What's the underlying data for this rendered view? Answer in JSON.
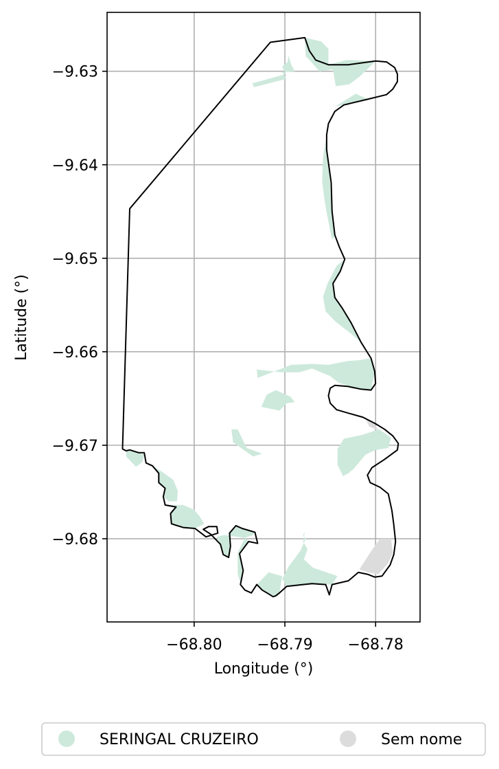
{
  "chart_data": {
    "type": "map",
    "xlabel": "Longitude (°)",
    "ylabel": "Latitude (°)",
    "xlim": [
      -68.8096,
      -68.7751
    ],
    "ylim": [
      -9.6889,
      -9.6237
    ],
    "x_ticks": [
      {
        "value": -68.8,
        "label": "−68.80"
      },
      {
        "value": -68.79,
        "label": "−68.79"
      },
      {
        "value": -68.78,
        "label": "−68.78"
      }
    ],
    "y_ticks": [
      {
        "value": -9.63,
        "label": "−9.63"
      },
      {
        "value": -9.64,
        "label": "−9.64"
      },
      {
        "value": -9.65,
        "label": "−9.65"
      },
      {
        "value": -9.66,
        "label": "−9.66"
      },
      {
        "value": -9.67,
        "label": "−9.67"
      },
      {
        "value": -9.68,
        "label": "−9.68"
      }
    ],
    "grid": true,
    "legend_position": "bottom",
    "legend": [
      {
        "label": "SERINGAL CRUZEIRO",
        "color": "#cde9dc"
      },
      {
        "label": "Sem nome",
        "color": "#dcdcdc"
      }
    ],
    "boundary_color": "#000000",
    "boundary": [
      [
        -68.7916,
        -9.6269
      ],
      [
        -68.7878,
        -9.6264
      ],
      [
        -68.7873,
        -9.6278
      ],
      [
        -68.7866,
        -9.6288
      ],
      [
        -68.7852,
        -9.6293
      ],
      [
        -68.783,
        -9.6293
      ],
      [
        -68.78,
        -9.6289
      ],
      [
        -68.7788,
        -9.629
      ],
      [
        -68.7779,
        -9.6296
      ],
      [
        -68.7776,
        -9.6303
      ],
      [
        -68.7776,
        -9.6311
      ],
      [
        -68.7781,
        -9.6319
      ],
      [
        -68.7788,
        -9.6325
      ],
      [
        -68.7809,
        -9.633
      ],
      [
        -68.7835,
        -9.6336
      ],
      [
        -68.7845,
        -9.6343
      ],
      [
        -68.7852,
        -9.6356
      ],
      [
        -68.7854,
        -9.6368
      ],
      [
        -68.7854,
        -9.6384
      ],
      [
        -68.7849,
        -9.6419
      ],
      [
        -68.7848,
        -9.645
      ],
      [
        -68.7845,
        -9.6475
      ],
      [
        -68.784,
        -9.6488
      ],
      [
        -68.7834,
        -9.6501
      ],
      [
        -68.7839,
        -9.6514
      ],
      [
        -68.7847,
        -9.6527
      ],
      [
        -68.7845,
        -9.6542
      ],
      [
        -68.7837,
        -9.6553
      ],
      [
        -68.7827,
        -9.6569
      ],
      [
        -68.7816,
        -9.659
      ],
      [
        -68.7805,
        -9.6607
      ],
      [
        -68.7801,
        -9.6621
      ],
      [
        -68.78,
        -9.6634
      ],
      [
        -68.7805,
        -9.6641
      ],
      [
        -68.7816,
        -9.664
      ],
      [
        -68.7831,
        -9.6637
      ],
      [
        -68.7845,
        -9.6636
      ],
      [
        -68.785,
        -9.6639
      ],
      [
        -68.7852,
        -9.6647
      ],
      [
        -68.785,
        -9.6655
      ],
      [
        -68.7843,
        -9.6662
      ],
      [
        -68.7829,
        -9.6666
      ],
      [
        -68.7814,
        -9.667
      ],
      [
        -68.78,
        -9.6677
      ],
      [
        -68.779,
        -9.6683
      ],
      [
        -68.7781,
        -9.669
      ],
      [
        -68.7775,
        -9.6698
      ],
      [
        -68.7776,
        -9.6705
      ],
      [
        -68.779,
        -9.6715
      ],
      [
        -68.7804,
        -9.6724
      ],
      [
        -68.7809,
        -9.6732
      ],
      [
        -68.7806,
        -9.674
      ],
      [
        -68.7795,
        -9.6745
      ],
      [
        -68.7786,
        -9.6752
      ],
      [
        -68.7782,
        -9.677
      ],
      [
        -68.778,
        -9.6785
      ],
      [
        -68.7778,
        -9.6803
      ],
      [
        -68.778,
        -9.6817
      ],
      [
        -68.7784,
        -9.6828
      ],
      [
        -68.7793,
        -9.684
      ],
      [
        -68.7801,
        -9.6841
      ],
      [
        -68.7809,
        -9.6838
      ],
      [
        -68.7819,
        -9.6836
      ],
      [
        -68.783,
        -9.6845
      ],
      [
        -68.7848,
        -9.6849
      ],
      [
        -68.7851,
        -9.686
      ],
      [
        -68.7855,
        -9.6849
      ],
      [
        -68.787,
        -9.6848
      ],
      [
        -68.788,
        -9.6849
      ],
      [
        -68.7898,
        -9.6851
      ],
      [
        -68.7906,
        -9.6858
      ],
      [
        -68.791,
        -9.6861
      ],
      [
        -68.7913,
        -9.6862
      ],
      [
        -68.7918,
        -9.6859
      ],
      [
        -68.7925,
        -9.6855
      ],
      [
        -68.7931,
        -9.6849
      ],
      [
        -68.7937,
        -9.6858
      ],
      [
        -68.7944,
        -9.6855
      ],
      [
        -68.7949,
        -9.6849
      ],
      [
        -68.7946,
        -9.6834
      ],
      [
        -68.795,
        -9.6816
      ],
      [
        -68.794,
        -9.6803
      ],
      [
        -68.793,
        -9.6805
      ],
      [
        -68.7933,
        -9.6793
      ],
      [
        -68.7947,
        -9.6789
      ],
      [
        -68.7954,
        -9.6786
      ],
      [
        -68.7961,
        -9.6794
      ],
      [
        -68.796,
        -9.6808
      ],
      [
        -68.7962,
        -9.682
      ],
      [
        -68.7968,
        -9.6817
      ],
      [
        -68.7971,
        -9.6806
      ],
      [
        -68.7982,
        -9.6795
      ],
      [
        -68.799,
        -9.679
      ],
      [
        -68.7984,
        -9.6787
      ],
      [
        -68.7975,
        -9.6787
      ],
      [
        -68.7974,
        -9.6794
      ],
      [
        -68.7987,
        -9.6798
      ],
      [
        -68.7999,
        -9.6789
      ],
      [
        -68.8012,
        -9.6788
      ],
      [
        -68.8025,
        -9.6784
      ],
      [
        -68.8026,
        -9.6773
      ],
      [
        -68.802,
        -9.6766
      ],
      [
        -68.8032,
        -9.6764
      ],
      [
        -68.8034,
        -9.6755
      ],
      [
        -68.8032,
        -9.6746
      ],
      [
        -68.8039,
        -9.674
      ],
      [
        -68.8039,
        -9.673
      ],
      [
        -68.8046,
        -9.6722
      ],
      [
        -68.8053,
        -9.6719
      ],
      [
        -68.8055,
        -9.6708
      ],
      [
        -68.8061,
        -9.6708
      ],
      [
        -68.8071,
        -9.6705
      ],
      [
        -68.8075,
        -9.6706
      ],
      [
        -68.8079,
        -9.6704
      ],
      [
        -68.8071,
        -9.6447
      ],
      [
        -68.7916,
        -9.6269
      ]
    ],
    "seringal_cruzeiro_color": "#cde9dc",
    "seringal_cruzeiro_regions": [
      [
        [
          -68.7878,
          -9.6264
        ],
        [
          -68.786,
          -9.6268
        ],
        [
          -68.7852,
          -9.6276
        ],
        [
          -68.7852,
          -9.6293
        ],
        [
          -68.7832,
          -9.6288
        ],
        [
          -68.78,
          -9.6289
        ],
        [
          -68.7806,
          -9.6295
        ],
        [
          -68.7818,
          -9.6306
        ],
        [
          -68.7829,
          -9.6314
        ],
        [
          -68.7844,
          -9.6316
        ],
        [
          -68.7847,
          -9.6298
        ],
        [
          -68.7862,
          -9.63
        ],
        [
          -68.787,
          -9.6291
        ],
        [
          -68.7877,
          -9.6284
        ]
      ],
      [
        [
          -68.7896,
          -9.6283
        ],
        [
          -68.7893,
          -9.6293
        ],
        [
          -68.7889,
          -9.63
        ],
        [
          -68.7903,
          -9.6301
        ],
        [
          -68.7898,
          -9.6308
        ],
        [
          -68.7934,
          -9.6317
        ],
        [
          -68.7936,
          -9.6313
        ],
        [
          -68.7899,
          -9.6303
        ],
        [
          -68.7903,
          -9.6295
        ],
        [
          -68.7897,
          -9.629
        ]
      ],
      [
        [
          -68.7848,
          -9.6339
        ],
        [
          -68.7833,
          -9.6335
        ],
        [
          -68.7808,
          -9.633
        ],
        [
          -68.7822,
          -9.6324
        ],
        [
          -68.7845,
          -9.6338
        ]
      ],
      [
        [
          -68.7854,
          -9.6368
        ],
        [
          -68.7853,
          -9.6384
        ],
        [
          -68.785,
          -9.642
        ],
        [
          -68.7848,
          -9.645
        ],
        [
          -68.7844,
          -9.6475
        ],
        [
          -68.7848,
          -9.648
        ],
        [
          -68.7852,
          -9.6461
        ],
        [
          -68.7856,
          -9.644
        ],
        [
          -68.7859,
          -9.6418
        ],
        [
          -68.7858,
          -9.6393
        ]
      ],
      [
        [
          -68.7834,
          -9.6501
        ],
        [
          -68.7839,
          -9.6514
        ],
        [
          -68.7847,
          -9.6527
        ],
        [
          -68.7845,
          -9.6542
        ],
        [
          -68.7837,
          -9.6553
        ],
        [
          -68.7827,
          -9.6569
        ],
        [
          -68.7816,
          -9.659
        ],
        [
          -68.7828,
          -9.658
        ],
        [
          -68.7844,
          -9.6568
        ],
        [
          -68.7855,
          -9.6557
        ],
        [
          -68.7858,
          -9.6541
        ],
        [
          -68.7853,
          -9.6527
        ],
        [
          -68.7843,
          -9.6508
        ]
      ],
      [
        [
          -68.793,
          -9.6628
        ],
        [
          -68.7931,
          -9.6619
        ],
        [
          -68.7904,
          -9.6622
        ],
        [
          -68.7884,
          -9.6622
        ],
        [
          -68.787,
          -9.6618
        ],
        [
          -68.785,
          -9.6626
        ],
        [
          -68.7841,
          -9.6633
        ],
        [
          -68.7829,
          -9.6637
        ],
        [
          -68.7817,
          -9.664
        ],
        [
          -68.7805,
          -9.6641
        ],
        [
          -68.7801,
          -9.6621
        ],
        [
          -68.7805,
          -9.6607
        ],
        [
          -68.7818,
          -9.6609
        ],
        [
          -68.7831,
          -9.661
        ],
        [
          -68.7852,
          -9.6614
        ],
        [
          -68.787,
          -9.6613
        ],
        [
          -68.7893,
          -9.6614
        ]
      ],
      [
        [
          -68.7906,
          -9.6663
        ],
        [
          -68.7926,
          -9.6659
        ],
        [
          -68.792,
          -9.6646
        ],
        [
          -68.791,
          -9.6641
        ],
        [
          -68.7894,
          -9.6648
        ],
        [
          -68.7889,
          -9.6654
        ],
        [
          -68.7898,
          -9.6655
        ],
        [
          -68.7906,
          -9.6663
        ]
      ],
      [
        [
          -68.7925,
          -9.6709
        ],
        [
          -68.7942,
          -9.6703
        ],
        [
          -68.7952,
          -9.6683
        ],
        [
          -68.7959,
          -9.6683
        ],
        [
          -68.7957,
          -9.6697
        ],
        [
          -68.7935,
          -9.6712
        ]
      ],
      [
        [
          -68.7835,
          -9.6693
        ],
        [
          -68.7815,
          -9.6689
        ],
        [
          -68.7796,
          -9.6683
        ],
        [
          -68.7783,
          -9.6692
        ],
        [
          -68.7786,
          -9.6703
        ],
        [
          -68.78,
          -9.6705
        ],
        [
          -68.7811,
          -9.671
        ],
        [
          -68.7824,
          -9.6725
        ],
        [
          -68.783,
          -9.673
        ],
        [
          -68.7836,
          -9.6733
        ],
        [
          -68.7842,
          -9.6721
        ],
        [
          -68.7842,
          -9.6704
        ]
      ],
      [
        [
          -68.8075,
          -9.6706
        ],
        [
          -68.8071,
          -9.6705
        ],
        [
          -68.8062,
          -9.6708
        ],
        [
          -68.8055,
          -9.671
        ],
        [
          -68.8057,
          -9.6718
        ],
        [
          -68.8064,
          -9.6723
        ],
        [
          -68.8075,
          -9.6712
        ]
      ],
      [
        [
          -68.8046,
          -9.6722
        ],
        [
          -68.8039,
          -9.673
        ],
        [
          -68.8039,
          -9.674
        ],
        [
          -68.8032,
          -9.6746
        ],
        [
          -68.8034,
          -9.6755
        ],
        [
          -68.8028,
          -9.676
        ],
        [
          -68.8019,
          -9.676
        ],
        [
          -68.8018,
          -9.6749
        ],
        [
          -68.8023,
          -9.6737
        ],
        [
          -68.8036,
          -9.6728
        ]
      ],
      [
        [
          -68.8032,
          -9.6764
        ],
        [
          -68.802,
          -9.6766
        ],
        [
          -68.8026,
          -9.6773
        ],
        [
          -68.8025,
          -9.6784
        ],
        [
          -68.8012,
          -9.6788
        ],
        [
          -68.7999,
          -9.6789
        ],
        [
          -68.7989,
          -9.6784
        ],
        [
          -68.7994,
          -9.6776
        ],
        [
          -68.8,
          -9.6769
        ],
        [
          -68.8012,
          -9.6764
        ]
      ],
      [
        [
          -68.7944,
          -9.6799
        ],
        [
          -68.7935,
          -9.6796
        ],
        [
          -68.7933,
          -9.6793
        ],
        [
          -68.7947,
          -9.6789
        ],
        [
          -68.7954,
          -9.6786
        ],
        [
          -68.7961,
          -9.6794
        ],
        [
          -68.796,
          -9.6808
        ],
        [
          -68.7962,
          -9.682
        ],
        [
          -68.7968,
          -9.6817
        ],
        [
          -68.7971,
          -9.6806
        ],
        [
          -68.7975,
          -9.6798
        ],
        [
          -68.7967,
          -9.6796
        ]
      ],
      [
        [
          -68.7944,
          -9.6855
        ],
        [
          -68.7949,
          -9.6849
        ],
        [
          -68.7946,
          -9.6834
        ],
        [
          -68.795,
          -9.6816
        ],
        [
          -68.794,
          -9.6803
        ],
        [
          -68.7944,
          -9.6799
        ],
        [
          -68.7952,
          -9.6815
        ],
        [
          -68.7952,
          -9.6838
        ],
        [
          -68.7948,
          -9.6851
        ]
      ],
      [
        [
          -68.7931,
          -9.6849
        ],
        [
          -68.7925,
          -9.6855
        ],
        [
          -68.7918,
          -9.6859
        ],
        [
          -68.7913,
          -9.6862
        ],
        [
          -68.791,
          -9.6861
        ],
        [
          -68.7906,
          -9.6858
        ],
        [
          -68.7903,
          -9.684
        ],
        [
          -68.7918,
          -9.6836
        ]
      ],
      [
        [
          -68.7898,
          -9.6851
        ],
        [
          -68.788,
          -9.6849
        ],
        [
          -68.787,
          -9.6848
        ],
        [
          -68.7855,
          -9.6849
        ],
        [
          -68.7848,
          -9.6849
        ],
        [
          -68.7842,
          -9.684
        ],
        [
          -68.7869,
          -9.6831
        ],
        [
          -68.7879,
          -9.6822
        ],
        [
          -68.7875,
          -9.6811
        ],
        [
          -68.788,
          -9.6803
        ],
        [
          -68.7878,
          -9.6793
        ],
        [
          -68.788,
          -9.6796
        ],
        [
          -68.7877,
          -9.68
        ],
        [
          -68.7883,
          -9.6813
        ],
        [
          -68.7896,
          -9.683
        ],
        [
          -68.7903,
          -9.6843
        ]
      ]
    ],
    "sem_nome_color": "#dcdcdc",
    "sem_nome_regions": [
      [
        [
          -68.7812,
          -9.667
        ],
        [
          -68.7802,
          -9.6676
        ],
        [
          -68.7797,
          -9.6684
        ],
        [
          -68.7807,
          -9.668
        ]
      ],
      [
        [
          -68.7795,
          -9.68
        ],
        [
          -68.7783,
          -9.68
        ],
        [
          -68.7781,
          -9.6815
        ],
        [
          -68.7786,
          -9.6826
        ],
        [
          -68.7797,
          -9.6838
        ],
        [
          -68.7808,
          -9.6836
        ],
        [
          -68.7818,
          -9.6833
        ],
        [
          -68.7804,
          -9.6812
        ]
      ]
    ]
  }
}
